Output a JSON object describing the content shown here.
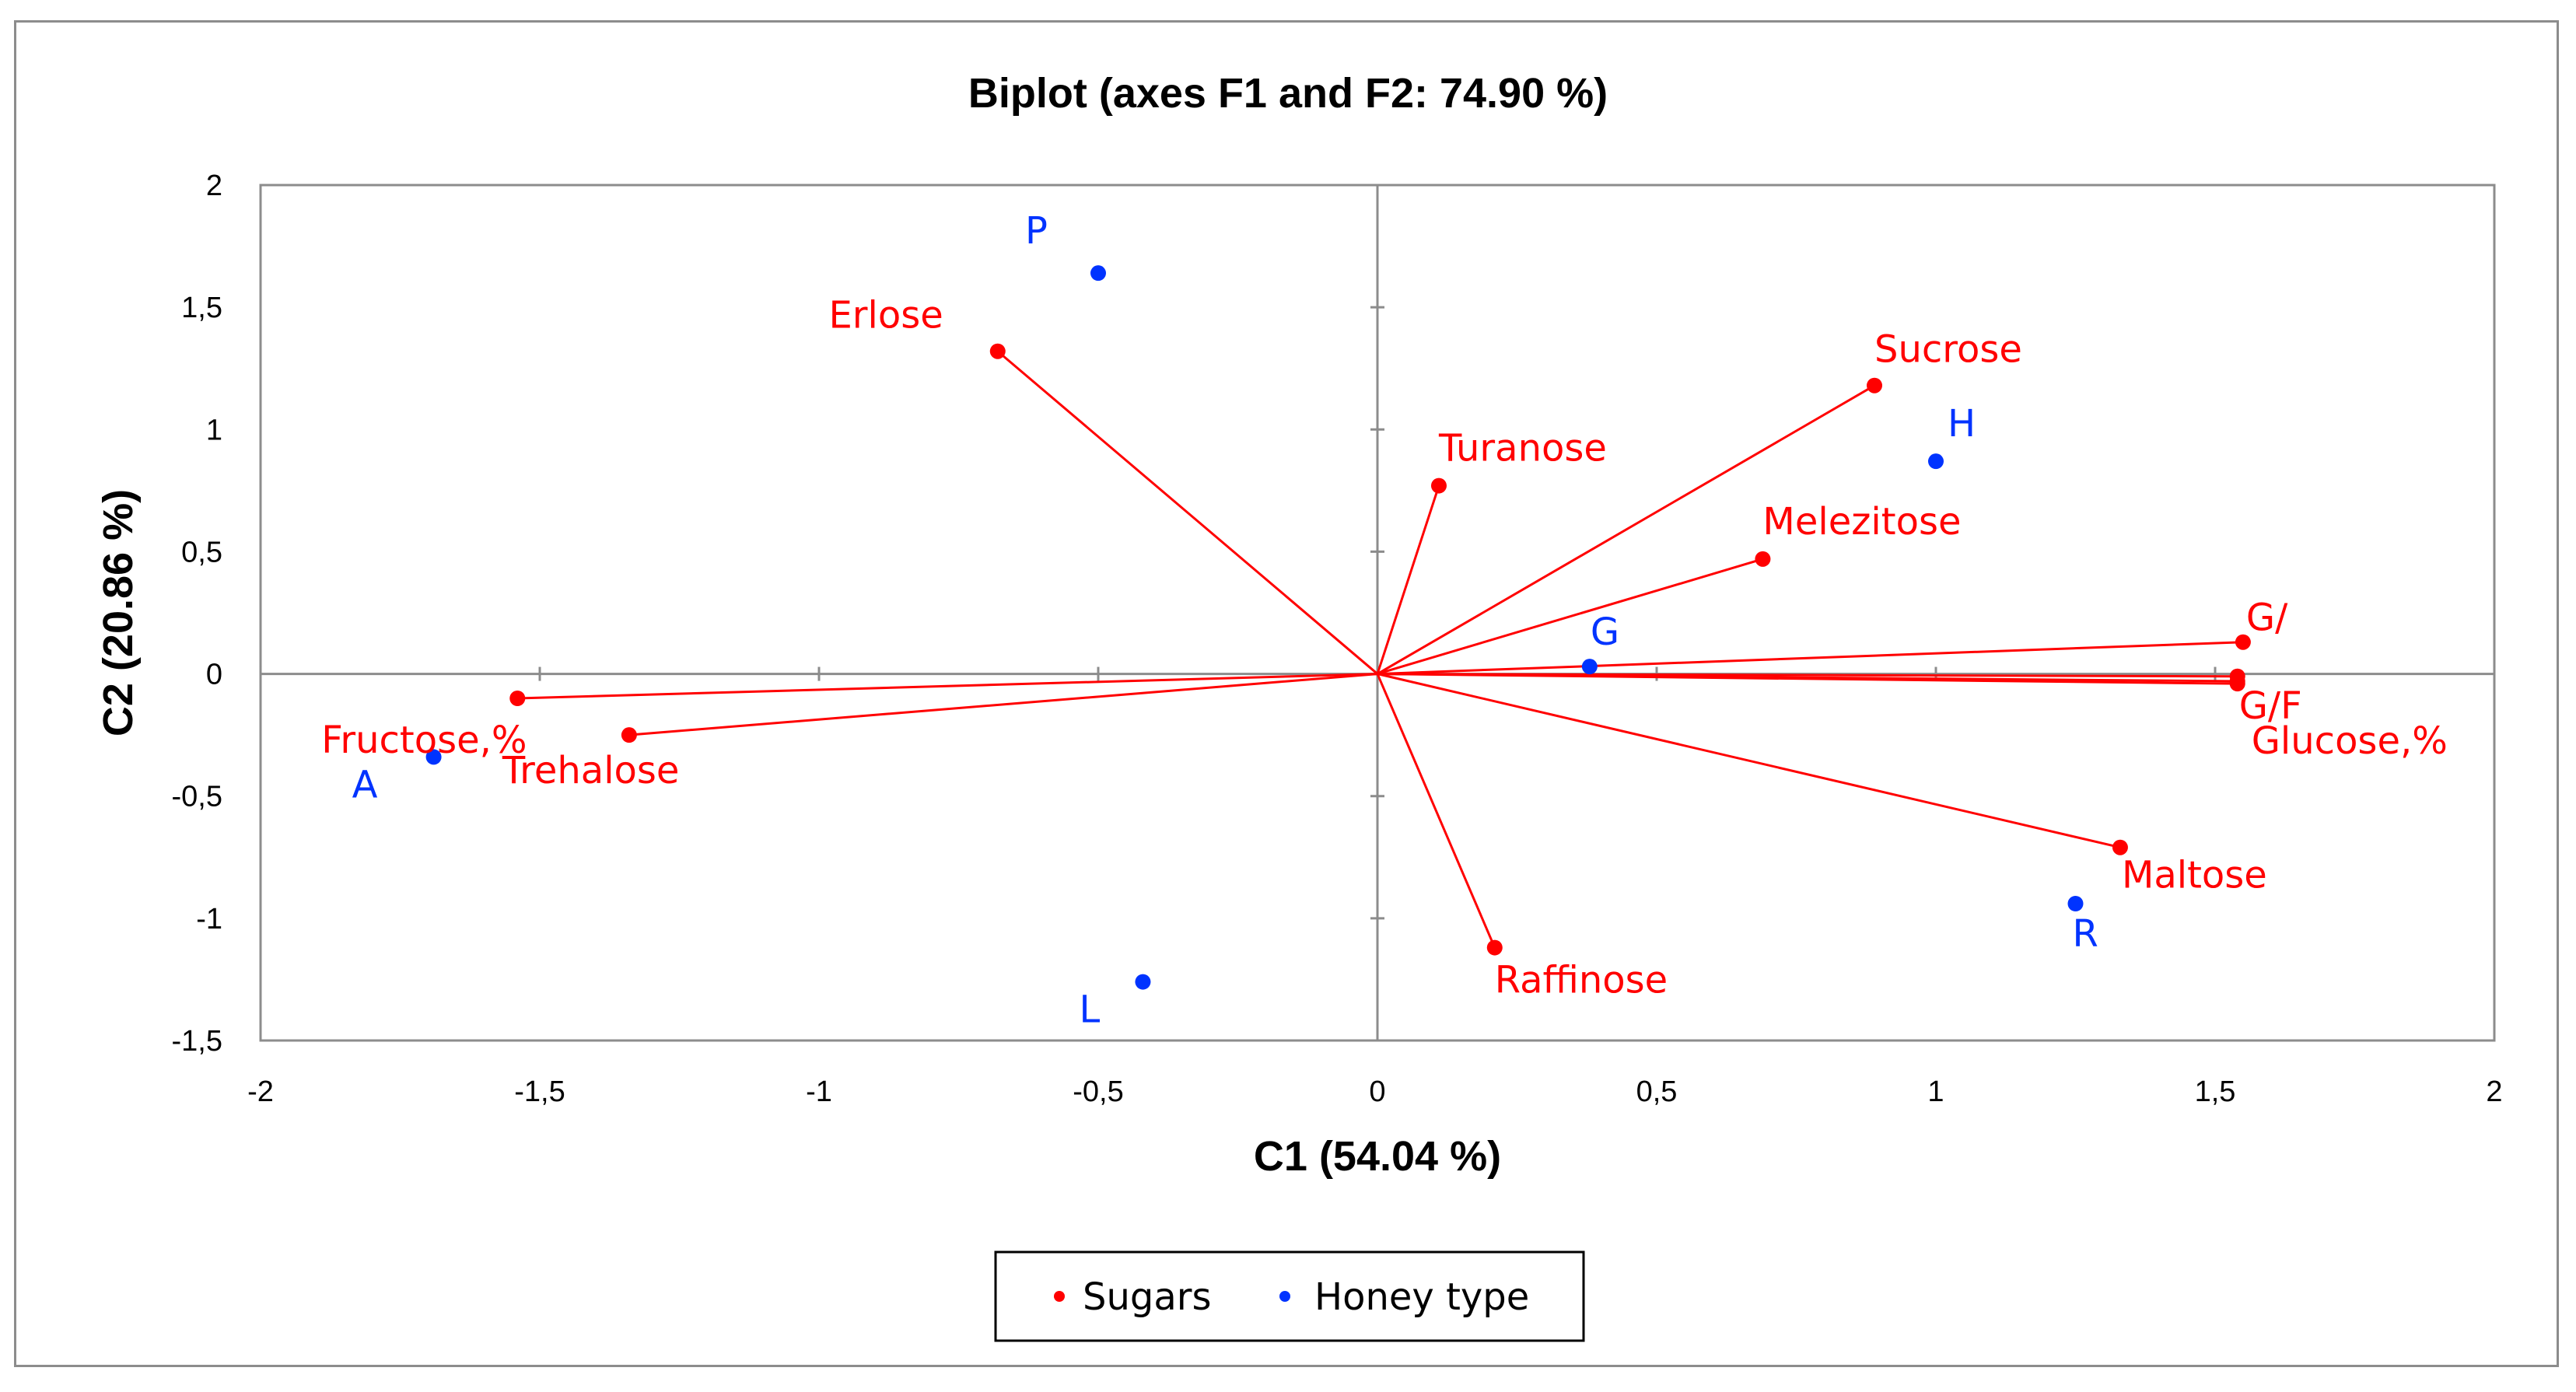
{
  "chart_data": {
    "type": "scatter",
    "title": "Biplot (axes F1 and F2: 74.90 %)",
    "xlabel": "C1 (54.04 %)",
    "ylabel": "C2 (20.86 %)",
    "xlim": [
      -2,
      2
    ],
    "ylim": [
      -1.5,
      2
    ],
    "xticks": [
      -2,
      -1.5,
      -1,
      -0.5,
      0,
      0.5,
      1,
      1.5,
      2
    ],
    "yticks": [
      -1.5,
      -1,
      -0.5,
      0,
      0.5,
      1,
      1.5,
      2
    ],
    "xtick_labels": [
      "-2",
      "-1,5",
      "-1",
      "-0,5",
      "0",
      "0,5",
      "1",
      "1,5",
      "2"
    ],
    "ytick_labels": [
      "-1,5",
      "-1",
      "-0,5",
      "0",
      "0,5",
      "1",
      "1,5",
      "2"
    ],
    "grid": false,
    "legend_position": "bottom-center",
    "series": [
      {
        "name": "Sugars",
        "color": "#ff0000",
        "vectors": true,
        "points": [
          {
            "label": "Erlose",
            "x": -0.68,
            "y": 1.32
          },
          {
            "label": "Sucrose",
            "x": 0.89,
            "y": 1.18
          },
          {
            "label": "Turanose",
            "x": 0.11,
            "y": 0.77
          },
          {
            "label": "Melezitose",
            "x": 0.69,
            "y": 0.47
          },
          {
            "label": "G/",
            "x": 1.55,
            "y": 0.13
          },
          {
            "label": "",
            "x": 1.54,
            "y": -0.01
          },
          {
            "label": "G/F",
            "x": 1.54,
            "y": -0.03
          },
          {
            "label": "Glucose,%",
            "x": 1.54,
            "y": -0.04
          },
          {
            "label": "Maltose",
            "x": 1.33,
            "y": -0.71
          },
          {
            "label": "Raffinose",
            "x": 0.21,
            "y": -1.12
          },
          {
            "label": "Fructose,%",
            "x": -1.54,
            "y": -0.1
          },
          {
            "label": "Trehalose",
            "x": -1.34,
            "y": -0.25
          }
        ]
      },
      {
        "name": "Honey type",
        "color": "#0033ff",
        "vectors": false,
        "points": [
          {
            "label": "P",
            "x": -0.5,
            "y": 1.64
          },
          {
            "label": "H",
            "x": 1.0,
            "y": 0.87
          },
          {
            "label": "G",
            "x": 0.38,
            "y": 0.03
          },
          {
            "label": "A",
            "x": -1.69,
            "y": -0.34
          },
          {
            "label": "L",
            "x": -0.42,
            "y": -1.26
          },
          {
            "label": "R",
            "x": 1.25,
            "y": -0.94
          }
        ]
      }
    ]
  }
}
